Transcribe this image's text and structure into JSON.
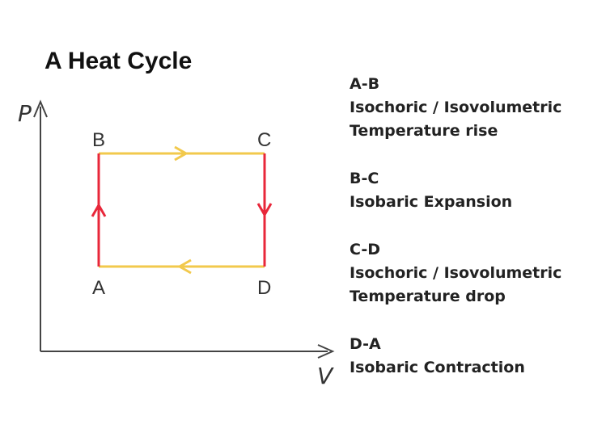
{
  "title": "A Heat Cycle",
  "diagram": {
    "axes": {
      "y": "P",
      "x": "V"
    },
    "points": [
      "A",
      "B",
      "C",
      "D"
    ]
  },
  "notes": [
    {
      "heading": "A-B",
      "lines": [
        "Isochoric / Isovolumetric",
        "Temperature rise"
      ]
    },
    {
      "heading": "B-C",
      "lines": [
        "Isobaric Expansion"
      ]
    },
    {
      "heading": "C-D",
      "lines": [
        "Isochoric / Isovolumetric",
        "Temperature drop"
      ]
    },
    {
      "heading": "D-A",
      "lines": [
        "Isobaric Contraction"
      ]
    }
  ]
}
